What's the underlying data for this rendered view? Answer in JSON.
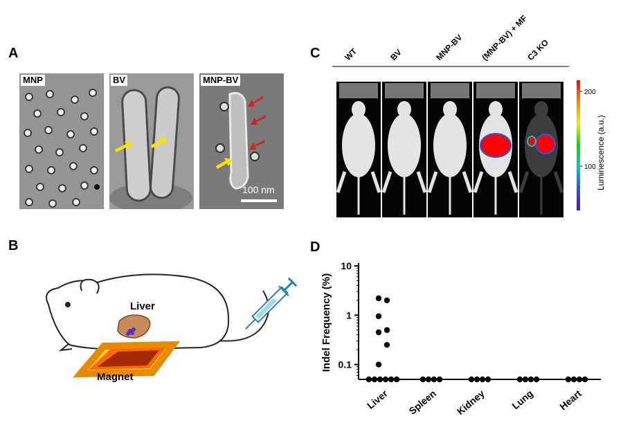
{
  "panels": {
    "a": "A",
    "b": "B",
    "c": "C",
    "d": "D"
  },
  "panel_a": {
    "images": [
      {
        "label": "MNP"
      },
      {
        "label": "BV"
      },
      {
        "label": "MNP-BV"
      }
    ],
    "scale_bar": "100 nm"
  },
  "panel_b": {
    "liver_label": "Liver",
    "magnet_label": "Magnet"
  },
  "panel_c": {
    "groups": [
      "WT",
      "BV",
      "MNP-BV",
      "(MNP-BV) + MF",
      "C3 KO"
    ],
    "colorbar": {
      "title": "Luminescence (a.u.)",
      "ticks": [
        "200",
        "100"
      ],
      "colors": [
        "#5a0fb4",
        "#1e5af0",
        "#00c8c8",
        "#00dc00",
        "#f0f000",
        "#ff8c00",
        "#ff0000"
      ]
    }
  },
  "chart_data": {
    "type": "scatter",
    "title": "",
    "ylabel": "Indel Frequency (%)",
    "yscale": "log",
    "ylim": [
      0.05,
      10
    ],
    "yticks": [
      "10",
      "1",
      "0.1"
    ],
    "categories": [
      "Liver",
      "Spleen",
      "Kidney",
      "Lung",
      "Heart"
    ],
    "points": [
      {
        "category": "Liver",
        "values": [
          2.2,
          2.0,
          0.95,
          0.5,
          0.45,
          0.25,
          0.1,
          0.05,
          0.05,
          0.05,
          0.05,
          0.05,
          0.05
        ]
      },
      {
        "category": "Spleen",
        "values": [
          0.05,
          0.05,
          0.05,
          0.05
        ]
      },
      {
        "category": "Kidney",
        "values": [
          0.05,
          0.05,
          0.05,
          0.05
        ]
      },
      {
        "category": "Lung",
        "values": [
          0.05,
          0.05,
          0.05,
          0.05
        ]
      },
      {
        "category": "Heart",
        "values": [
          0.05,
          0.05,
          0.05,
          0.05
        ]
      }
    ]
  }
}
